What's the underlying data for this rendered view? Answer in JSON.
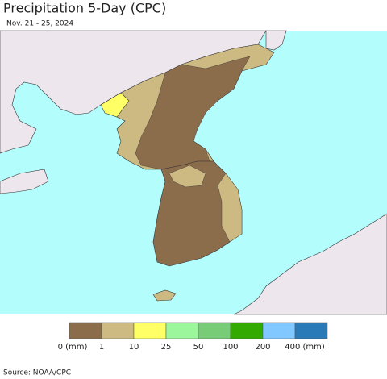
{
  "header": {
    "title": "Precipitation 5-Day (CPC)",
    "subtitle": "Nov. 21 - 25, 2024"
  },
  "legend": {
    "items": [
      {
        "label": "0 (mm)",
        "color": "#8b6d4c"
      },
      {
        "label": "1",
        "color": "#cdb982"
      },
      {
        "label": "10",
        "color": "#ffff66"
      },
      {
        "label": "25",
        "color": "#9cf79c"
      },
      {
        "label": "50",
        "color": "#78cc78"
      },
      {
        "label": "100",
        "color": "#33aa00"
      },
      {
        "label": "200",
        "color": "#80c8ff"
      },
      {
        "label": "400 (mm)",
        "color": "#2a7ab8"
      }
    ]
  },
  "footer": {
    "source": "Source: NOAA/CPC"
  }
}
